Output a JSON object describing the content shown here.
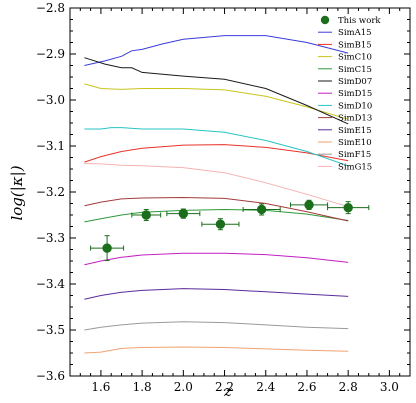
{
  "chart_data": {
    "type": "line",
    "xlabel": "z",
    "ylabel": "log(|κ|)",
    "xlim": [
      1.45,
      3.1
    ],
    "ylim": [
      -3.6,
      -2.8
    ],
    "xticks": [
      1.6,
      1.8,
      2.0,
      2.2,
      2.4,
      2.6,
      2.8,
      3.0
    ],
    "yticks": [
      -3.6,
      -3.5,
      -3.4,
      -3.3,
      -3.2,
      -3.1,
      -3.0,
      -2.9,
      -2.8
    ],
    "xtick_labels": [
      "1.6",
      "1.8",
      "2.0",
      "2.2",
      "2.4",
      "2.6",
      "2.8",
      "3.0"
    ],
    "ytick_labels": [
      "−3.6",
      "−3.5",
      "−3.4",
      "−3.3",
      "−3.2",
      "−3.1",
      "−3.0",
      "−2.9",
      "−2.8"
    ],
    "grid": false,
    "legend_position": "top-right",
    "series": [
      {
        "name": "SimA15",
        "color": "#3b3bdc",
        "x": [
          1.52,
          1.62,
          1.7,
          1.75,
          1.8,
          1.9,
          2.0,
          2.2,
          2.4,
          2.6,
          2.8
        ],
        "y": [
          -2.925,
          -2.915,
          -2.905,
          -2.893,
          -2.89,
          -2.878,
          -2.868,
          -2.86,
          -2.86,
          -2.875,
          -2.898
        ]
      },
      {
        "name": "SimB15",
        "color": "#e8332a",
        "x": [
          1.52,
          1.6,
          1.7,
          1.8,
          2.0,
          2.2,
          2.4,
          2.6,
          2.8
        ],
        "y": [
          -3.135,
          -3.123,
          -3.112,
          -3.105,
          -3.098,
          -3.097,
          -3.103,
          -3.115,
          -3.132
        ]
      },
      {
        "name": "SimC10",
        "color": "#c8c51e",
        "x": [
          1.52,
          1.6,
          1.7,
          1.8,
          2.0,
          2.2,
          2.4,
          2.6,
          2.8
        ],
        "y": [
          -2.965,
          -2.975,
          -2.977,
          -2.975,
          -2.975,
          -2.978,
          -2.992,
          -3.015,
          -3.042
        ]
      },
      {
        "name": "SimC15",
        "color": "#2f9a3a",
        "x": [
          1.52,
          1.6,
          1.7,
          1.8,
          2.0,
          2.2,
          2.4,
          2.6,
          2.8
        ],
        "y": [
          -3.265,
          -3.258,
          -3.25,
          -3.244,
          -3.24,
          -3.238,
          -3.24,
          -3.248,
          -3.262
        ]
      },
      {
        "name": "SimD07",
        "color": "#1a1a1a",
        "x": [
          1.52,
          1.62,
          1.7,
          1.75,
          1.8,
          2.0,
          2.2,
          2.4,
          2.6,
          2.8
        ],
        "y": [
          -2.908,
          -2.922,
          -2.93,
          -2.93,
          -2.94,
          -2.948,
          -2.955,
          -2.975,
          -3.012,
          -3.052
        ]
      },
      {
        "name": "SimD15",
        "color": "#c21fc2",
        "x": [
          1.52,
          1.6,
          1.7,
          1.8,
          2.0,
          2.2,
          2.4,
          2.6,
          2.8
        ],
        "y": [
          -3.358,
          -3.35,
          -3.342,
          -3.337,
          -3.333,
          -3.333,
          -3.336,
          -3.343,
          -3.353
        ]
      },
      {
        "name": "SimD10",
        "color": "#27c4c4",
        "x": [
          1.52,
          1.6,
          1.65,
          1.7,
          1.8,
          2.0,
          2.2,
          2.4,
          2.6,
          2.8
        ],
        "y": [
          -3.063,
          -3.063,
          -3.06,
          -3.06,
          -3.063,
          -3.063,
          -3.07,
          -3.088,
          -3.112,
          -3.143
        ]
      },
      {
        "name": "SimD13",
        "color": "#a33b3b",
        "x": [
          1.52,
          1.6,
          1.7,
          1.8,
          2.0,
          2.2,
          2.4,
          2.6,
          2.8
        ],
        "y": [
          -3.23,
          -3.222,
          -3.215,
          -3.213,
          -3.212,
          -3.214,
          -3.225,
          -3.243,
          -3.263
        ]
      },
      {
        "name": "SimE15",
        "color": "#5a2a9c",
        "x": [
          1.52,
          1.6,
          1.7,
          1.8,
          2.0,
          2.2,
          2.4,
          2.6,
          2.8
        ],
        "y": [
          -3.433,
          -3.425,
          -3.418,
          -3.414,
          -3.41,
          -3.412,
          -3.417,
          -3.422,
          -3.427
        ]
      },
      {
        "name": "SimE10",
        "color": "#f2a271",
        "x": [
          1.52,
          1.6,
          1.7,
          1.8,
          2.0,
          2.2,
          2.4,
          2.6,
          2.8
        ],
        "y": [
          -3.55,
          -3.548,
          -3.54,
          -3.538,
          -3.537,
          -3.538,
          -3.541,
          -3.544,
          -3.546
        ]
      },
      {
        "name": "SimF15",
        "color": "#9a9a9a",
        "x": [
          1.52,
          1.6,
          1.7,
          1.8,
          2.0,
          2.2,
          2.4,
          2.6,
          2.8
        ],
        "y": [
          -3.5,
          -3.494,
          -3.489,
          -3.485,
          -3.482,
          -3.484,
          -3.489,
          -3.494,
          -3.497
        ]
      },
      {
        "name": "SimG15",
        "color": "#f5b2b2",
        "x": [
          1.52,
          1.6,
          1.7,
          1.8,
          2.0,
          2.2,
          2.4,
          2.6,
          2.8
        ],
        "y": [
          -3.138,
          -3.139,
          -3.142,
          -3.143,
          -3.147,
          -3.158,
          -3.18,
          -3.205,
          -3.232
        ]
      }
    ],
    "observations": {
      "name": "This work",
      "color": "#1b6e1b",
      "points": [
        {
          "x": 1.63,
          "y": -3.322,
          "xerr": 0.08,
          "yerr": 0.027
        },
        {
          "x": 1.82,
          "y": -3.25,
          "xerr": 0.07,
          "yerr": 0.012
        },
        {
          "x": 2.0,
          "y": -3.247,
          "xerr": 0.08,
          "yerr": 0.01
        },
        {
          "x": 2.18,
          "y": -3.27,
          "xerr": 0.09,
          "yerr": 0.012
        },
        {
          "x": 2.38,
          "y": -3.238,
          "xerr": 0.09,
          "yerr": 0.012
        },
        {
          "x": 2.61,
          "y": -3.228,
          "xerr": 0.09,
          "yerr": 0.01
        },
        {
          "x": 2.8,
          "y": -3.234,
          "xerr": 0.1,
          "yerr": 0.013
        }
      ]
    }
  }
}
